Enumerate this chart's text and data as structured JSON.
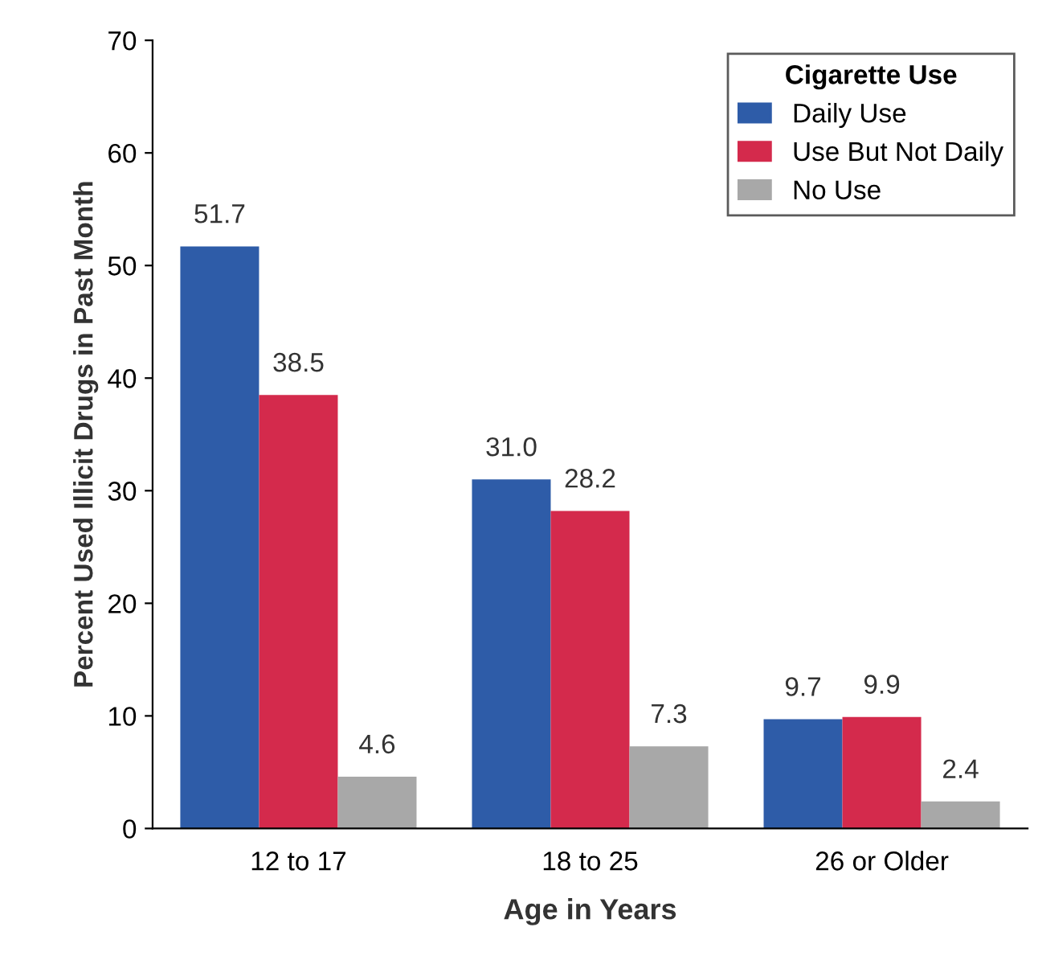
{
  "chart_data": {
    "type": "bar",
    "xlabel": "Age in Years",
    "ylabel": "Percent Used Illicit Drugs in Past Month",
    "legend_title": "Cigarette Use",
    "categories": [
      "12 to 17",
      "18 to 25",
      "26 or Older"
    ],
    "series": [
      {
        "name": "Daily Use",
        "color": "#2e5ca8",
        "values": [
          51.7,
          31.0,
          9.7
        ],
        "value_labels": [
          "51.7",
          "31.0",
          "9.7"
        ]
      },
      {
        "name": "Use But Not Daily",
        "color": "#d42a4c",
        "values": [
          38.5,
          28.2,
          9.9
        ],
        "value_labels": [
          "38.5",
          "28.2",
          "9.9"
        ]
      },
      {
        "name": "No Use",
        "color": "#a8a8a8",
        "values": [
          4.6,
          7.3,
          2.4
        ],
        "value_labels": [
          "4.6",
          "7.3",
          "2.4"
        ]
      }
    ],
    "ylim": [
      0,
      70
    ],
    "yticks": [
      0,
      10,
      20,
      30,
      40,
      50,
      60,
      70
    ],
    "grid": false,
    "legend": "top right"
  }
}
